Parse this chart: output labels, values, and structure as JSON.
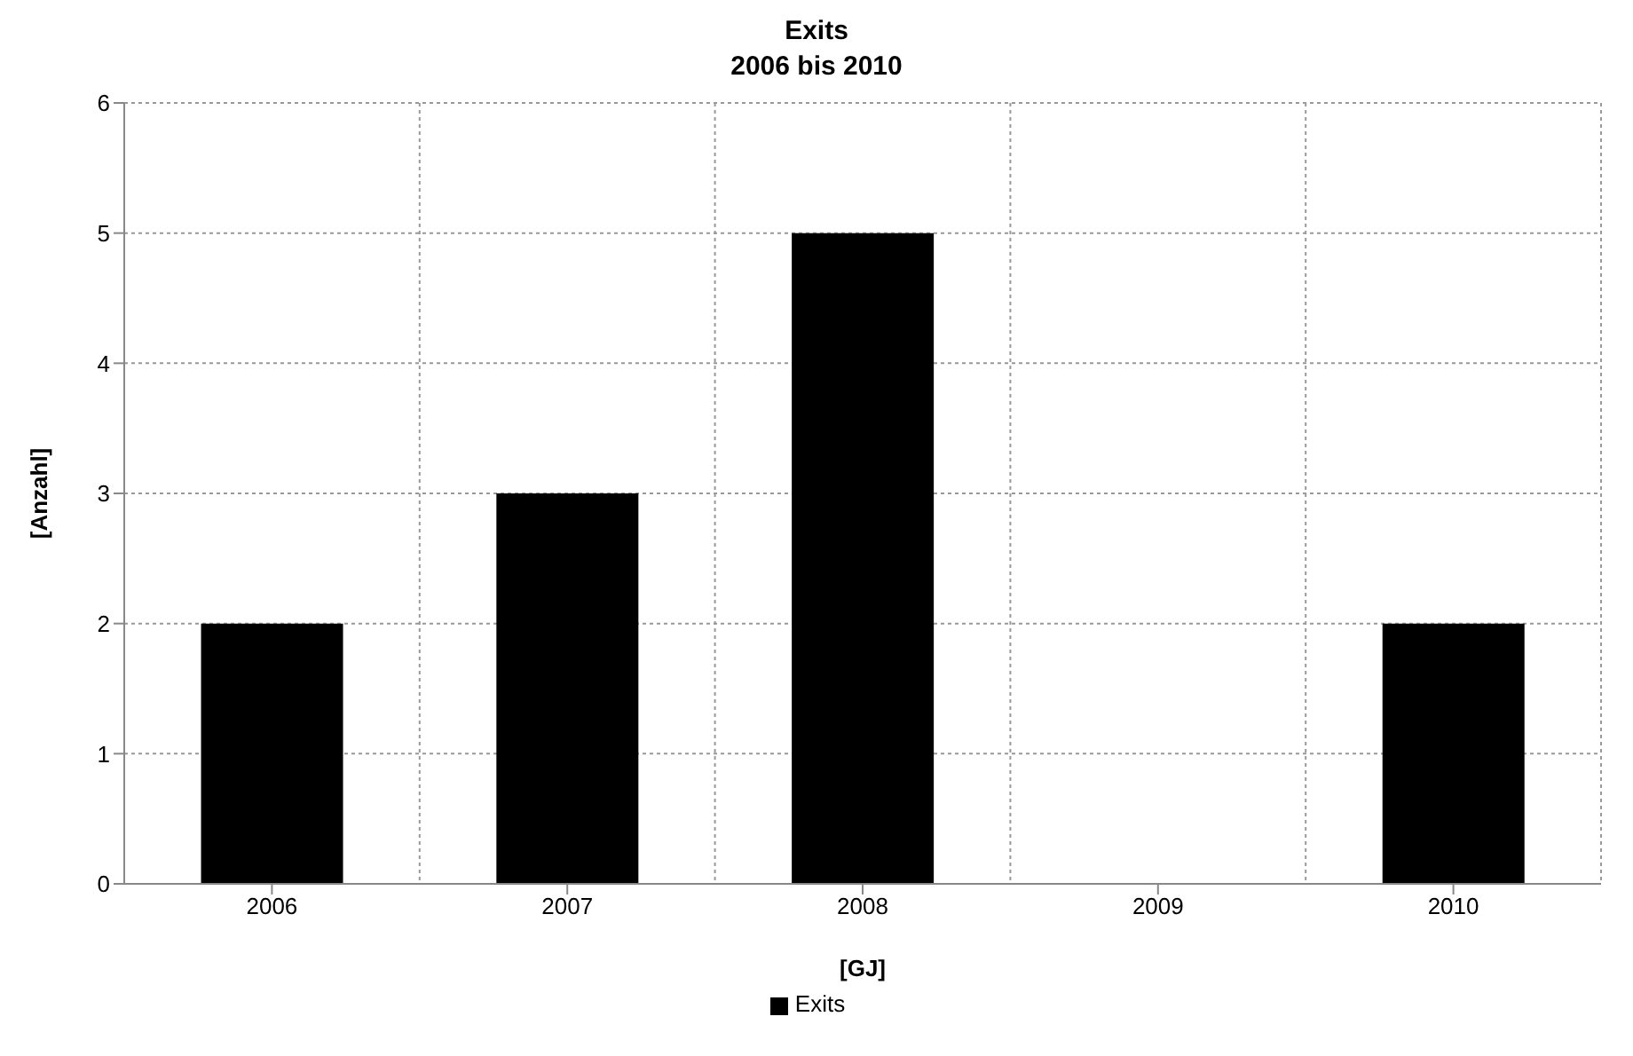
{
  "chart_data": {
    "type": "bar",
    "title": "Exits",
    "subtitle": "2006 bis 2010",
    "xlabel": "[GJ]",
    "ylabel": "[Anzahl]",
    "categories": [
      "2006",
      "2007",
      "2008",
      "2009",
      "2010"
    ],
    "series": [
      {
        "name": "Exits",
        "color": "#000000",
        "values": [
          2,
          3,
          5,
          0,
          2
        ]
      }
    ],
    "ylim": [
      0,
      6
    ],
    "yticks": [
      0,
      1,
      2,
      3,
      4,
      5,
      6
    ],
    "grid": true,
    "legend": "bottom"
  }
}
